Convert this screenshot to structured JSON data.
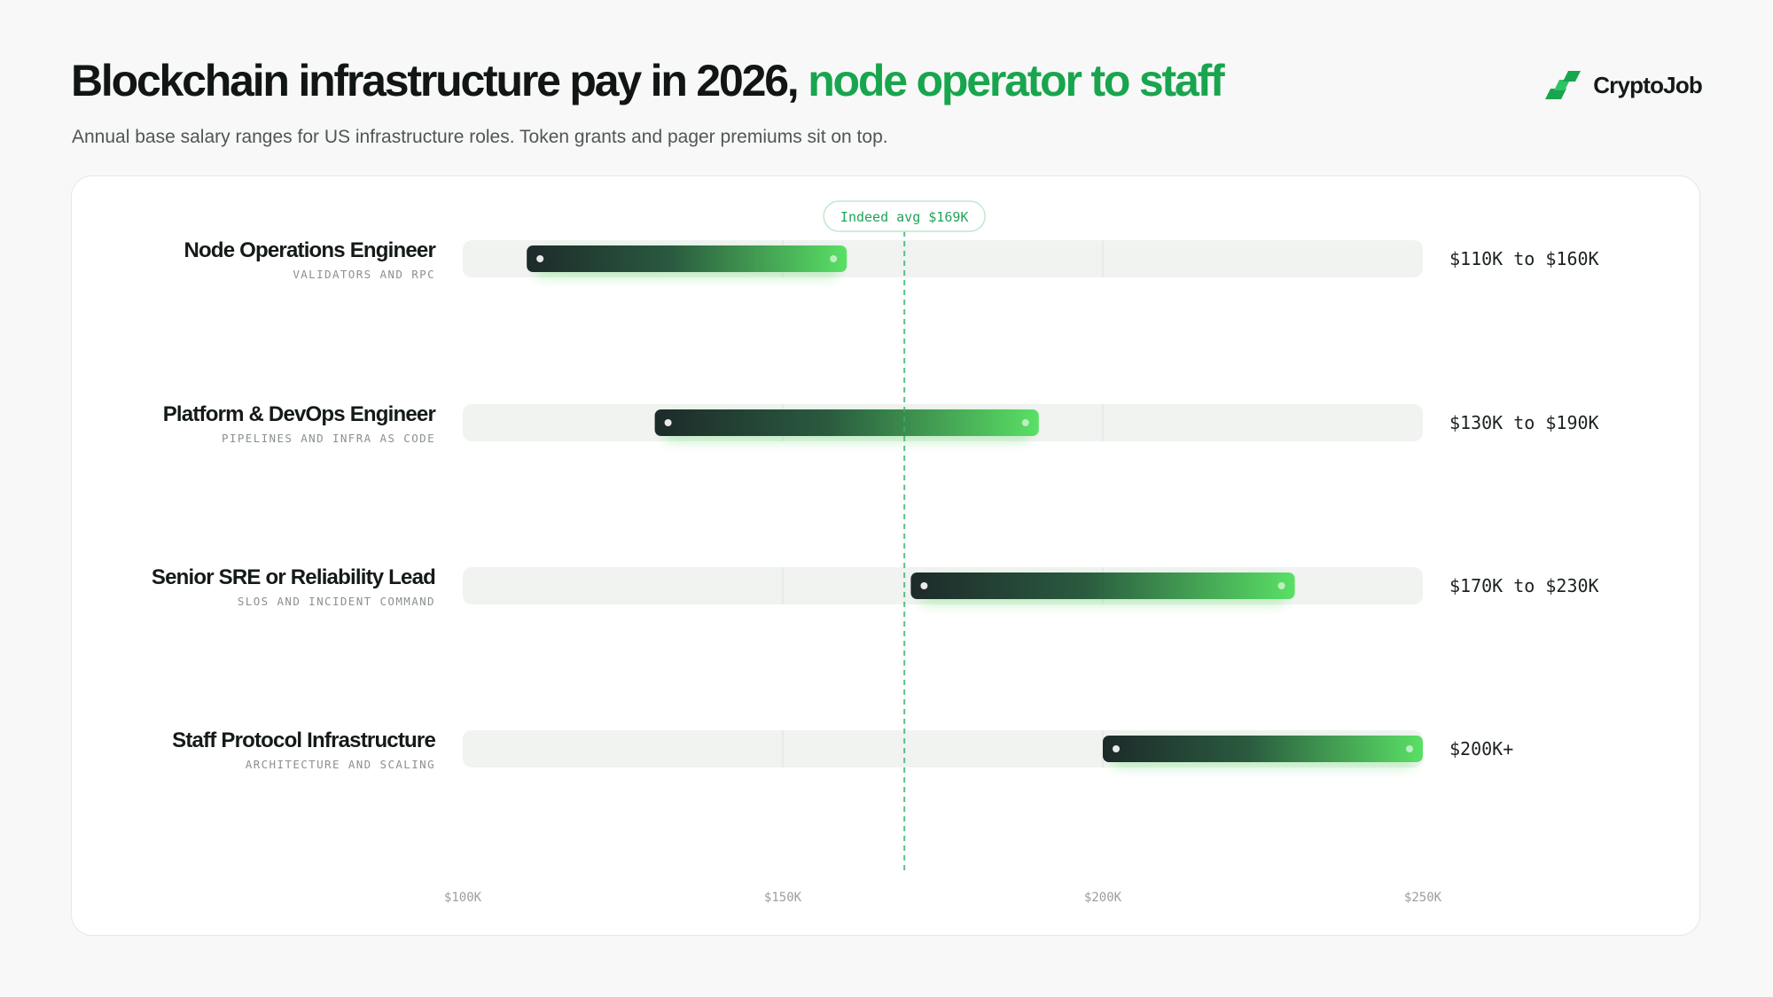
{
  "header": {
    "title_main": "Blockchain infrastructure pay in 2026,",
    "title_accent": "node operator to staff",
    "subtitle": "Annual base salary ranges for US infrastructure roles. Token grants and pager premiums sit on top."
  },
  "brand": {
    "name": "CryptoJob",
    "icon": "cryptojob-logo-icon",
    "accent_color": "#18a54e"
  },
  "chart_data": {
    "type": "range-bar",
    "title": "Blockchain infrastructure pay in 2026, node operator to staff",
    "xlim": [
      100000,
      250000
    ],
    "x_ticks": [
      {
        "value": 100000,
        "label": "$100K"
      },
      {
        "value": 150000,
        "label": "$150K"
      },
      {
        "value": 200000,
        "label": "$200K"
      },
      {
        "value": 250000,
        "label": "$250K"
      }
    ],
    "reference_line": {
      "value": 169000,
      "label": "Indeed avg $169K"
    },
    "series": [
      {
        "role": "Node Operations Engineer",
        "subtitle": "VALIDATORS AND RPC",
        "min": 110000,
        "max": 160000,
        "range_label": "$110K to $160K"
      },
      {
        "role": "Platform & DevOps Engineer",
        "subtitle": "PIPELINES AND INFRA AS CODE",
        "min": 130000,
        "max": 190000,
        "range_label": "$130K to $190K"
      },
      {
        "role": "Senior SRE or Reliability Lead",
        "subtitle": "SLOS AND INCIDENT COMMAND",
        "min": 170000,
        "max": 230000,
        "range_label": "$170K to $230K"
      },
      {
        "role": "Staff Protocol Infrastructure",
        "subtitle": "ARCHITECTURE AND SCALING",
        "min": 200000,
        "max": 250000,
        "range_label": "$200K+"
      }
    ],
    "colors": {
      "bar_start": "#1d2a2a",
      "bar_end": "#5ae065",
      "reference": "#2fb36a"
    }
  }
}
